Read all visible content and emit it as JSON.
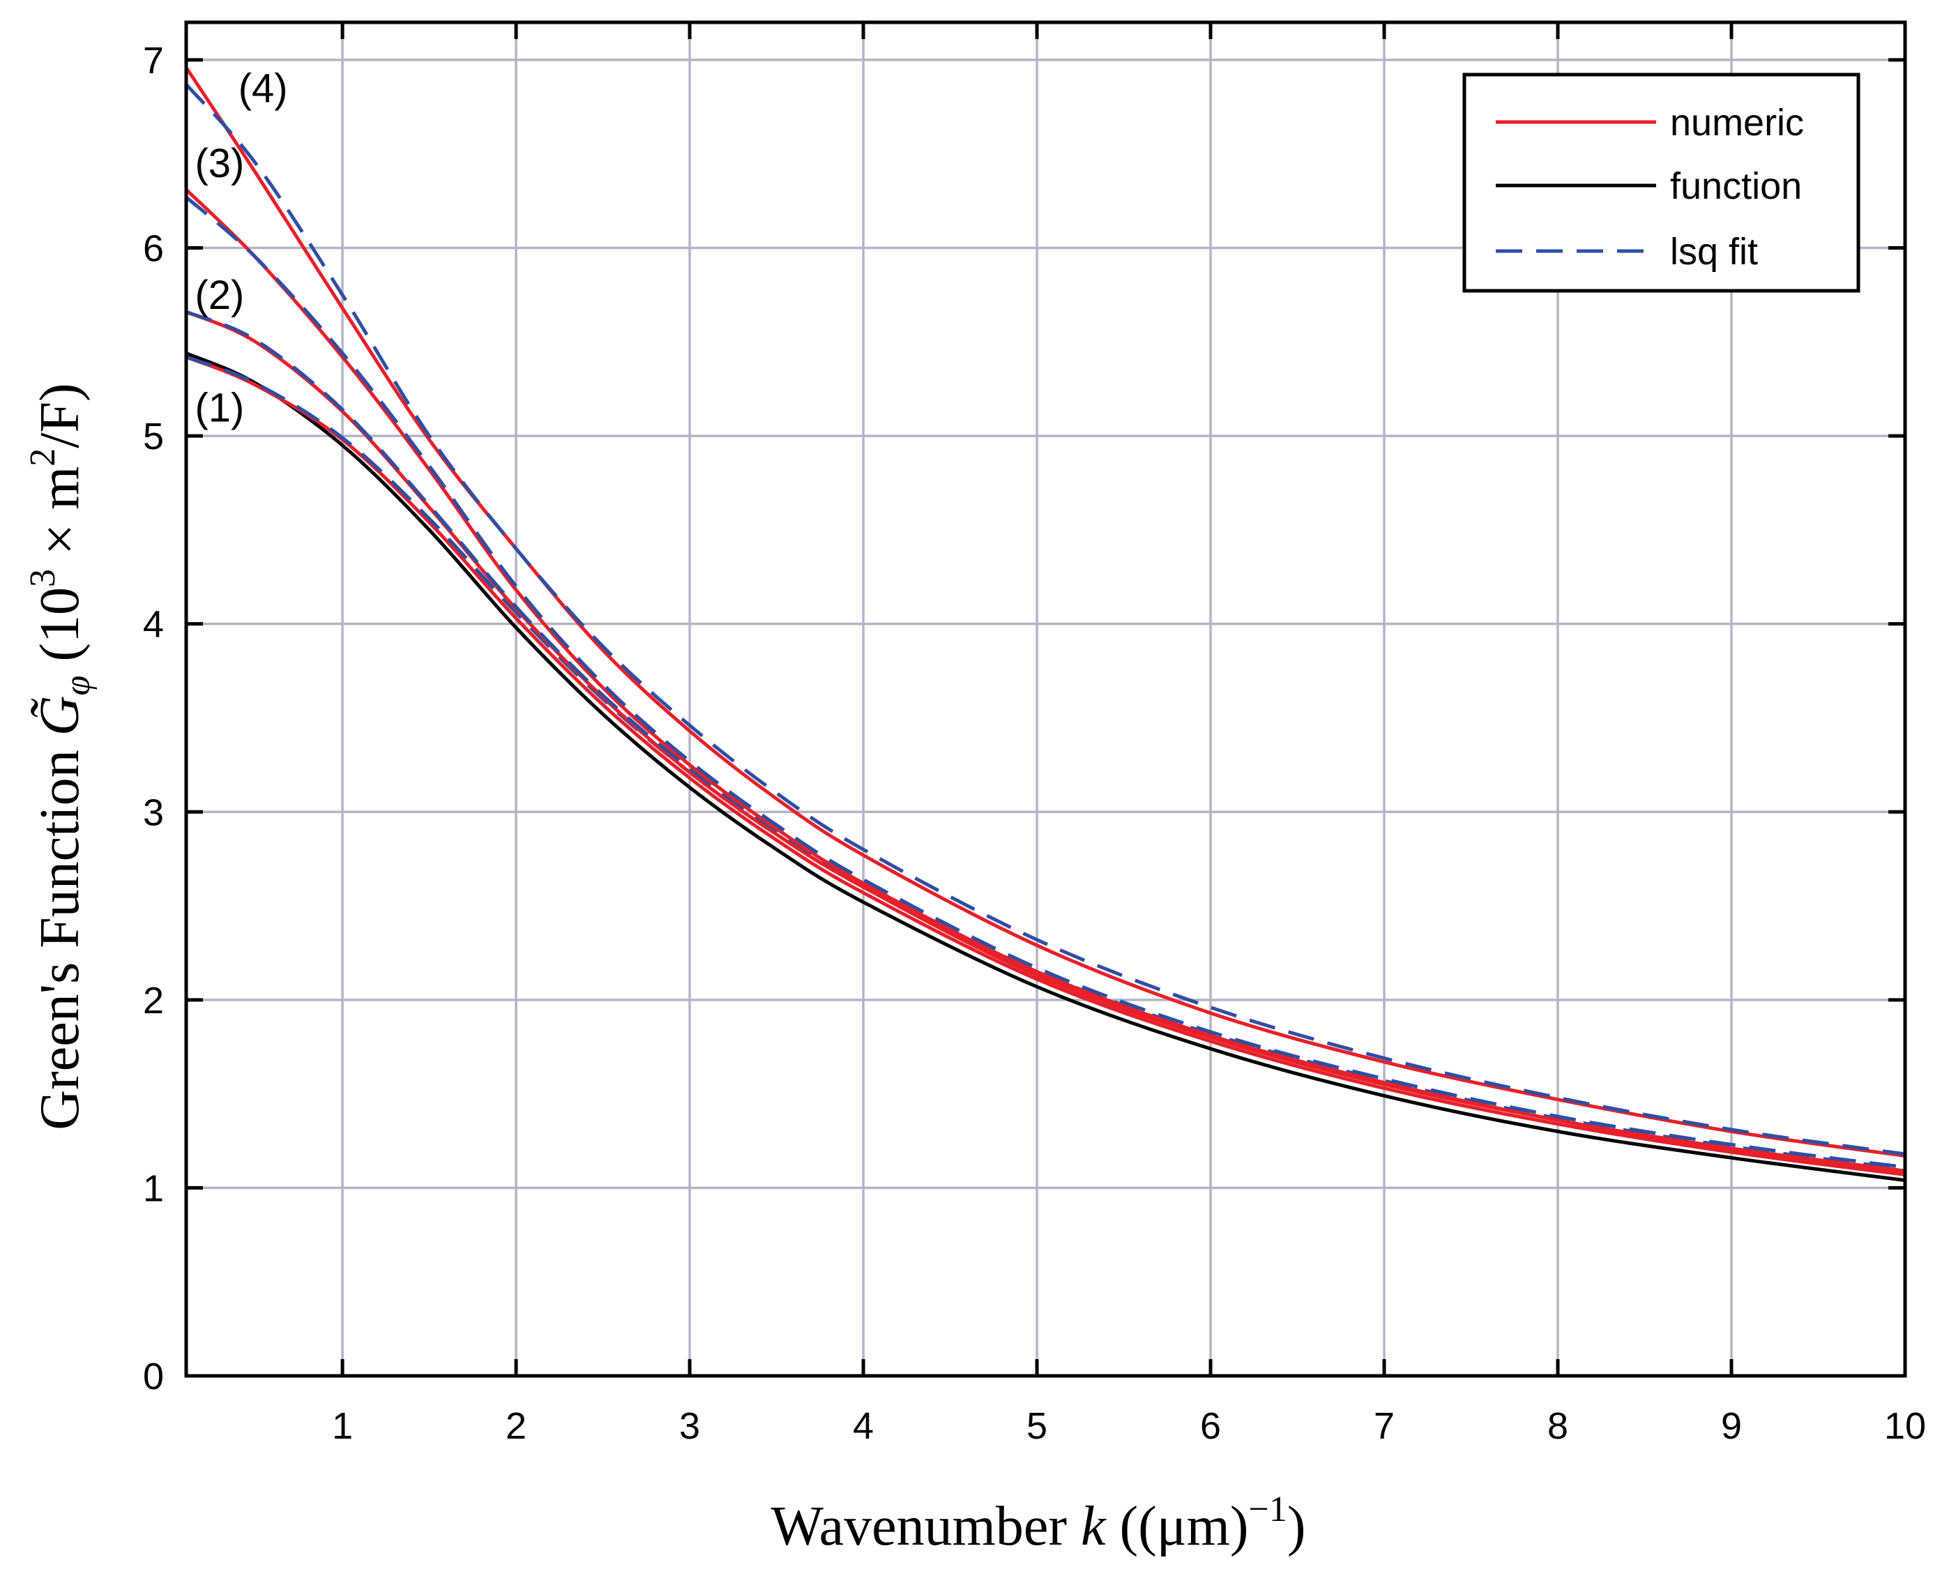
{
  "chart_data": {
    "type": "line",
    "xlabel": {
      "prefix": "Wavenumber ",
      "var": "k",
      "unit_open": " ((",
      "unit": "μm",
      "unit_close": ")",
      "sup": "−1",
      "end": ")"
    },
    "ylabel": {
      "prefix": "Green's Function ",
      "var": "G̃",
      "sub": "φ",
      "unit_open": "  (10",
      "sup1": "3",
      "times": " × m",
      "sup2": "2",
      "unit_close": "/F)"
    },
    "xlim": [
      0.1,
      10
    ],
    "ylim": [
      0,
      7.2
    ],
    "xticks": [
      1,
      2,
      3,
      4,
      5,
      6,
      7,
      8,
      9,
      10
    ],
    "yticks": [
      0,
      1,
      2,
      3,
      4,
      5,
      6,
      7
    ],
    "xtick_labels": [
      "1",
      "2",
      "3",
      "4",
      "5",
      "6",
      "7",
      "8",
      "9",
      "10"
    ],
    "ytick_labels": [
      "0",
      "1",
      "2",
      "3",
      "4",
      "5",
      "6",
      "7"
    ],
    "grid": true,
    "legend": {
      "position": "top-right",
      "entries": [
        {
          "label": "numeric",
          "color": "#e8202a",
          "dash": "solid"
        },
        {
          "label": "function",
          "color": "#000000",
          "dash": "solid"
        },
        {
          "label": "lsq fit",
          "color": "#2e4fa3",
          "dash": "dashed"
        }
      ]
    },
    "curve_labels": [
      {
        "text": "(1)",
        "x": 0.15,
        "y": 5.15
      },
      {
        "text": "(2)",
        "x": 0.15,
        "y": 5.75
      },
      {
        "text": "(3)",
        "x": 0.15,
        "y": 6.45
      },
      {
        "text": "(4)",
        "x": 0.4,
        "y": 6.85
      }
    ],
    "x": [
      0.1,
      0.5,
      1,
      1.5,
      2,
      2.5,
      3,
      3.5,
      4,
      5,
      6,
      7,
      8,
      9,
      10
    ],
    "series": [
      {
        "name": "function",
        "color": "#000000",
        "dash": "solid",
        "width": 5,
        "values": [
          5.44,
          5.28,
          4.95,
          4.5,
          3.98,
          3.52,
          3.13,
          2.8,
          2.52,
          2.07,
          1.74,
          1.49,
          1.3,
          1.16,
          1.04
        ]
      },
      {
        "name": "(1) numeric",
        "color": "#e8202a",
        "dash": "solid",
        "width": 5,
        "values": [
          5.42,
          5.27,
          4.98,
          4.54,
          4.03,
          3.57,
          3.18,
          2.85,
          2.57,
          2.11,
          1.78,
          1.53,
          1.34,
          1.19,
          1.07
        ]
      },
      {
        "name": "(1) lsq fit",
        "color": "#2e4fa3",
        "dash": "dashed",
        "width": 5,
        "values": [
          5.42,
          5.28,
          4.99,
          4.56,
          4.06,
          3.6,
          3.21,
          2.88,
          2.6,
          2.14,
          1.81,
          1.56,
          1.36,
          1.21,
          1.09
        ]
      },
      {
        "name": "(2) numeric",
        "color": "#e8202a",
        "dash": "solid",
        "width": 5,
        "values": [
          5.66,
          5.5,
          5.13,
          4.62,
          4.08,
          3.61,
          3.21,
          2.88,
          2.6,
          2.13,
          1.8,
          1.55,
          1.36,
          1.2,
          1.08
        ]
      },
      {
        "name": "(2) lsq fit",
        "color": "#2e4fa3",
        "dash": "dashed",
        "width": 5,
        "values": [
          5.66,
          5.51,
          5.14,
          4.63,
          4.09,
          3.62,
          3.23,
          2.9,
          2.62,
          2.15,
          1.82,
          1.57,
          1.37,
          1.22,
          1.1
        ]
      },
      {
        "name": "(3) numeric",
        "color": "#e8202a",
        "dash": "solid",
        "width": 5,
        "values": [
          6.31,
          5.95,
          5.42,
          4.82,
          4.18,
          3.66,
          3.25,
          2.91,
          2.62,
          2.15,
          1.81,
          1.56,
          1.36,
          1.21,
          1.09
        ]
      },
      {
        "name": "(3) lsq fit",
        "color": "#2e4fa3",
        "dash": "dashed",
        "width": 5,
        "values": [
          6.27,
          5.95,
          5.44,
          4.84,
          4.2,
          3.68,
          3.27,
          2.93,
          2.64,
          2.17,
          1.83,
          1.58,
          1.38,
          1.23,
          1.11
        ]
      },
      {
        "name": "(4) numeric",
        "color": "#e8202a",
        "dash": "solid",
        "width": 5,
        "values": [
          6.96,
          6.4,
          5.68,
          4.98,
          4.4,
          3.86,
          3.43,
          3.07,
          2.77,
          2.29,
          1.93,
          1.67,
          1.47,
          1.3,
          1.17
        ]
      },
      {
        "name": "(4) lsq fit",
        "color": "#2e4fa3",
        "dash": "dashed",
        "width": 5,
        "values": [
          6.87,
          6.45,
          5.75,
          5.0,
          4.4,
          3.88,
          3.46,
          3.1,
          2.8,
          2.32,
          1.96,
          1.69,
          1.48,
          1.31,
          1.18
        ]
      }
    ]
  }
}
